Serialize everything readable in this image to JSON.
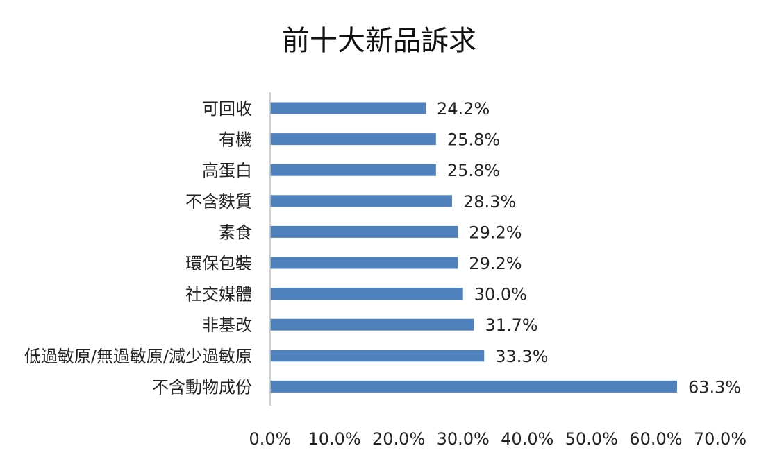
{
  "chart_data": {
    "type": "bar",
    "orientation": "horizontal",
    "title": "前十大新品訴求",
    "categories": [
      "可回收",
      "有機",
      "高蛋白",
      "不含麩質",
      "素食",
      "環保包裝",
      "社交媒體",
      "非基改",
      "低過敏原/無過敏原/減少過敏原",
      "不含動物成份"
    ],
    "values": [
      24.2,
      25.8,
      25.8,
      28.3,
      29.2,
      29.2,
      30.0,
      31.7,
      33.3,
      63.3
    ],
    "data_labels": [
      "24.2%",
      "25.8%",
      "25.8%",
      "28.3%",
      "29.2%",
      "29.2%",
      "30.0%",
      "31.7%",
      "33.3%",
      "63.3%"
    ],
    "xlim": [
      0,
      70
    ],
    "x_ticks": [
      0,
      10,
      20,
      30,
      40,
      50,
      60,
      70
    ],
    "x_tick_labels": [
      "0.0%",
      "10.0%",
      "20.0%",
      "30.0%",
      "40.0%",
      "50.0%",
      "60.0%",
      "70.0%"
    ],
    "xlabel": "",
    "ylabel": "",
    "grid": false,
    "legend": "none",
    "bar_color": "#4f81bd",
    "axis_color": "#bfbfbf"
  }
}
